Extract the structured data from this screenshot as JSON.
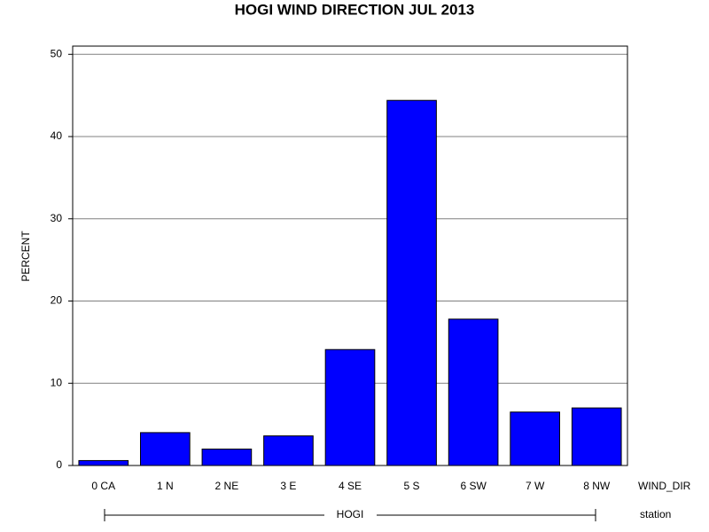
{
  "chart_data": {
    "type": "bar",
    "title": "HOGI WIND DIRECTION JUL 2013",
    "y_label": "PERCENT",
    "x_label": "WIND_DIR",
    "group_label": "HOGI",
    "group_axis_label": "station",
    "categories": [
      "0 CA",
      "1 N",
      "2 NE",
      "3 E",
      "4 SE",
      "5 S",
      "6 SW",
      "7 W",
      "8 NW"
    ],
    "values": [
      0.6,
      4.0,
      2.0,
      3.6,
      14.1,
      44.4,
      17.8,
      6.5,
      7.0
    ],
    "color": "#0000ff",
    "ylim": [
      0,
      51
    ],
    "yticks": [
      0,
      10,
      20,
      30,
      40,
      50
    ],
    "grid": true
  }
}
